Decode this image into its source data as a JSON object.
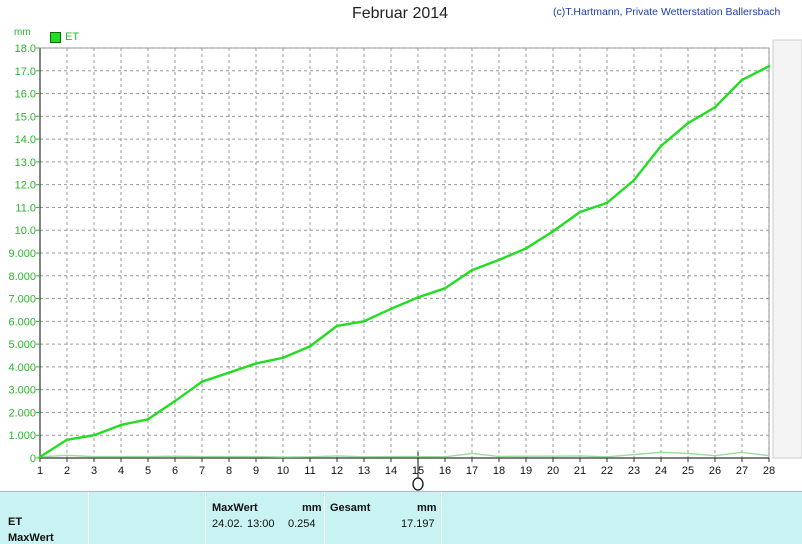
{
  "chart_data": {
    "type": "line",
    "title": "Februar 2014",
    "credit": "(c)T.Hartmann, Private Wetterstation Ballersbach",
    "ylabel": "mm",
    "legend": "ET",
    "ylim": [
      0,
      18
    ],
    "xlim": [
      1,
      28
    ],
    "x_ticks": [
      "1",
      "2",
      "3",
      "4",
      "5",
      "6",
      "7",
      "8",
      "9",
      "10",
      "11",
      "12",
      "13",
      "14",
      "15",
      "16",
      "17",
      "18",
      "19",
      "20",
      "21",
      "22",
      "23",
      "24",
      "25",
      "26",
      "27",
      "28"
    ],
    "y_ticks": [
      "0",
      "1.000",
      "2.000",
      "3.000",
      "4.000",
      "5.000",
      "6.000",
      "7.000",
      "8.000",
      "9.000",
      "10.0",
      "11.0",
      "12.0",
      "13.0",
      "14.0",
      "15.0",
      "16.0",
      "17.0",
      "18.0"
    ],
    "grid": true,
    "series": [
      {
        "name": "ET",
        "color": "#22dd22",
        "x": [
          1,
          2,
          3,
          4,
          5,
          6,
          7,
          8,
          9,
          10,
          11,
          12,
          13,
          14,
          15,
          16,
          17,
          18,
          19,
          20,
          21,
          22,
          23,
          24,
          25,
          26,
          27,
          28
        ],
        "values": [
          0.05,
          0.8,
          1.0,
          1.45,
          1.7,
          2.5,
          3.35,
          3.75,
          4.15,
          4.4,
          4.9,
          5.8,
          6.0,
          6.55,
          7.05,
          7.45,
          8.25,
          8.7,
          9.2,
          9.95,
          10.8,
          11.2,
          12.2,
          13.7,
          14.7,
          15.4,
          16.6,
          17.2
        ]
      },
      {
        "name": "",
        "color": "#99dd99",
        "x": [
          1,
          2,
          3,
          4,
          5,
          6,
          7,
          8,
          9,
          10,
          11,
          12,
          13,
          14,
          15,
          16,
          17,
          18,
          19,
          20,
          21,
          22,
          23,
          24,
          25,
          26,
          27,
          28
        ],
        "values": [
          0.05,
          0.12,
          0.06,
          0.06,
          0.06,
          0.08,
          0.06,
          0.06,
          0.06,
          0.04,
          0.05,
          0.09,
          0.05,
          0.06,
          0.06,
          0.05,
          0.2,
          0.07,
          0.08,
          0.08,
          0.09,
          0.05,
          0.15,
          0.25,
          0.2,
          0.1,
          0.25,
          0.1
        ]
      }
    ]
  },
  "table": {
    "row1_label": "ET",
    "row2_label": "MaxWert",
    "max_header": "MaxWert",
    "max_unit": "mm",
    "max_date": "24.02.",
    "max_time": "13:00",
    "max_value": "0.254",
    "total_header": "Gesamt",
    "total_unit": "mm",
    "total_value": "17.197"
  }
}
